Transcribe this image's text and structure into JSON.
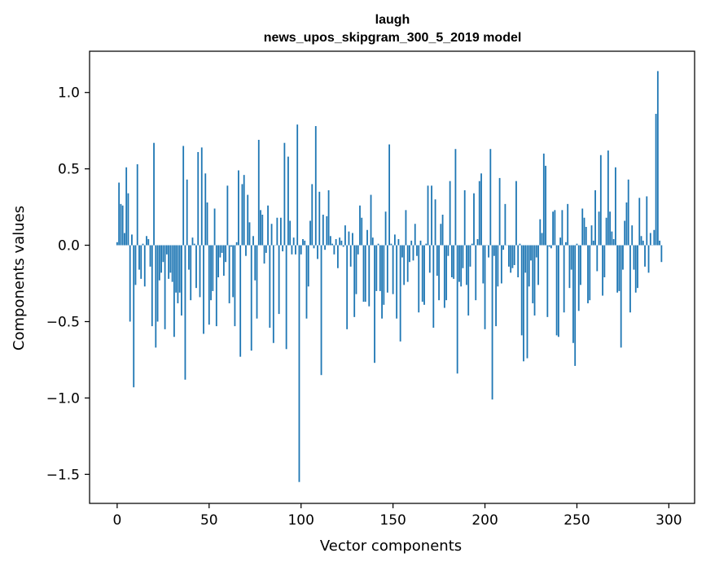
{
  "chart_data": {
    "type": "bar",
    "title": "laugh",
    "subtitle": "news_upos_skipgram_300_5_2019 model",
    "xlabel": "Vector components",
    "ylabel": "Components values",
    "xlim": [
      -15,
      314
    ],
    "ylim": [
      -1.69,
      1.27
    ],
    "xticks": [
      0,
      50,
      100,
      150,
      200,
      250,
      300
    ],
    "yticks": [
      -1.5,
      -1.0,
      -0.5,
      0.0,
      0.5,
      1.0
    ],
    "ytick_labels": [
      "−1.5",
      "−1.0",
      "−0.5",
      "0.0",
      "0.5",
      "1.0"
    ],
    "grid": false,
    "bar_color": "#1f77b4",
    "values": [
      0.02,
      0.41,
      0.27,
      0.26,
      0.08,
      0.51,
      0.34,
      -0.5,
      0.07,
      -0.93,
      -0.26,
      0.53,
      -0.16,
      -0.22,
      0.01,
      -0.27,
      0.06,
      0.04,
      -0.14,
      -0.53,
      0.67,
      -0.67,
      -0.5,
      -0.23,
      -0.18,
      -0.11,
      -0.55,
      -0.06,
      -0.22,
      -0.18,
      -0.24,
      -0.6,
      -0.31,
      -0.38,
      -0.31,
      -0.46,
      0.65,
      -0.88,
      0.43,
      -0.16,
      -0.36,
      0.05,
      0.01,
      -0.28,
      0.61,
      -0.34,
      0.64,
      -0.58,
      0.47,
      0.28,
      -0.52,
      -0.36,
      -0.3,
      0.24,
      -0.53,
      -0.21,
      -0.08,
      -0.05,
      -0.2,
      -0.11,
      0.39,
      -0.38,
      -0.01,
      -0.34,
      -0.53,
      0.02,
      0.49,
      -0.73,
      0.4,
      0.46,
      -0.07,
      0.33,
      0.15,
      -0.69,
      0.06,
      -0.23,
      -0.48,
      0.69,
      0.23,
      0.2,
      -0.12,
      -0.05,
      0.26,
      -0.54,
      0.14,
      -0.64,
      0.0,
      0.18,
      -0.45,
      0.18,
      -0.04,
      0.67,
      -0.68,
      0.58,
      0.16,
      -0.06,
      0.05,
      -0.06,
      0.79,
      -1.55,
      -0.06,
      0.04,
      0.03,
      -0.48,
      -0.27,
      0.16,
      0.4,
      -0.02,
      0.78,
      -0.09,
      0.35,
      -0.85,
      0.2,
      -0.03,
      0.19,
      0.36,
      0.06,
      0.01,
      -0.06,
      0.04,
      -0.15,
      0.05,
      0.03,
      -0.01,
      0.13,
      -0.55,
      0.09,
      -0.14,
      0.08,
      -0.47,
      -0.32,
      -0.06,
      0.26,
      0.18,
      -0.37,
      -0.37,
      0.1,
      -0.4,
      0.33,
      0.05,
      -0.77,
      -0.3,
      0.01,
      -0.3,
      -0.48,
      -0.39,
      0.22,
      -0.31,
      0.66,
      0.01,
      -0.32,
      0.07,
      -0.48,
      0.04,
      -0.63,
      -0.08,
      -0.26,
      0.23,
      -0.24,
      -0.11,
      0.03,
      -0.1,
      0.14,
      -0.07,
      -0.44,
      0.03,
      -0.37,
      -0.39,
      0.01,
      0.39,
      -0.18,
      0.39,
      -0.54,
      0.3,
      -0.2,
      -0.36,
      0.14,
      0.2,
      -0.41,
      -0.36,
      -0.07,
      0.42,
      -0.21,
      -0.22,
      0.63,
      -0.84,
      -0.24,
      -0.27,
      -0.15,
      0.36,
      -0.26,
      -0.46,
      -0.14,
      0.01,
      0.34,
      -0.36,
      0.04,
      0.42,
      0.47,
      -0.25,
      -0.55,
      0.0,
      -0.08,
      0.63,
      -1.01,
      -0.07,
      -0.53,
      -0.27,
      0.44,
      -0.25,
      -0.03,
      0.27,
      0.0,
      -0.14,
      -0.18,
      -0.15,
      -0.13,
      0.42,
      -0.21,
      0.01,
      -0.59,
      -0.76,
      -0.18,
      -0.74,
      -0.27,
      -0.1,
      -0.38,
      -0.46,
      -0.08,
      -0.26,
      0.17,
      0.08,
      0.6,
      0.52,
      -0.47,
      -0.01,
      -0.02,
      0.22,
      0.23,
      -0.59,
      -0.6,
      0.05,
      0.23,
      -0.44,
      0.02,
      0.27,
      -0.28,
      -0.16,
      -0.64,
      -0.79,
      0.01,
      -0.43,
      -0.26,
      0.24,
      0.18,
      0.12,
      -0.38,
      -0.36,
      0.13,
      0.03,
      0.36,
      -0.17,
      0.22,
      0.59,
      -0.33,
      -0.21,
      0.18,
      0.62,
      0.22,
      0.09,
      0.04,
      0.51,
      -0.31,
      -0.3,
      -0.67,
      -0.16,
      0.16,
      0.28,
      0.43,
      -0.44,
      0.13,
      -0.16,
      -0.31,
      -0.28,
      0.31,
      0.06,
      0.03,
      -0.14,
      0.32,
      -0.18,
      0.08,
      0.0,
      0.1,
      0.86,
      1.14,
      0.03,
      -0.11
    ]
  }
}
